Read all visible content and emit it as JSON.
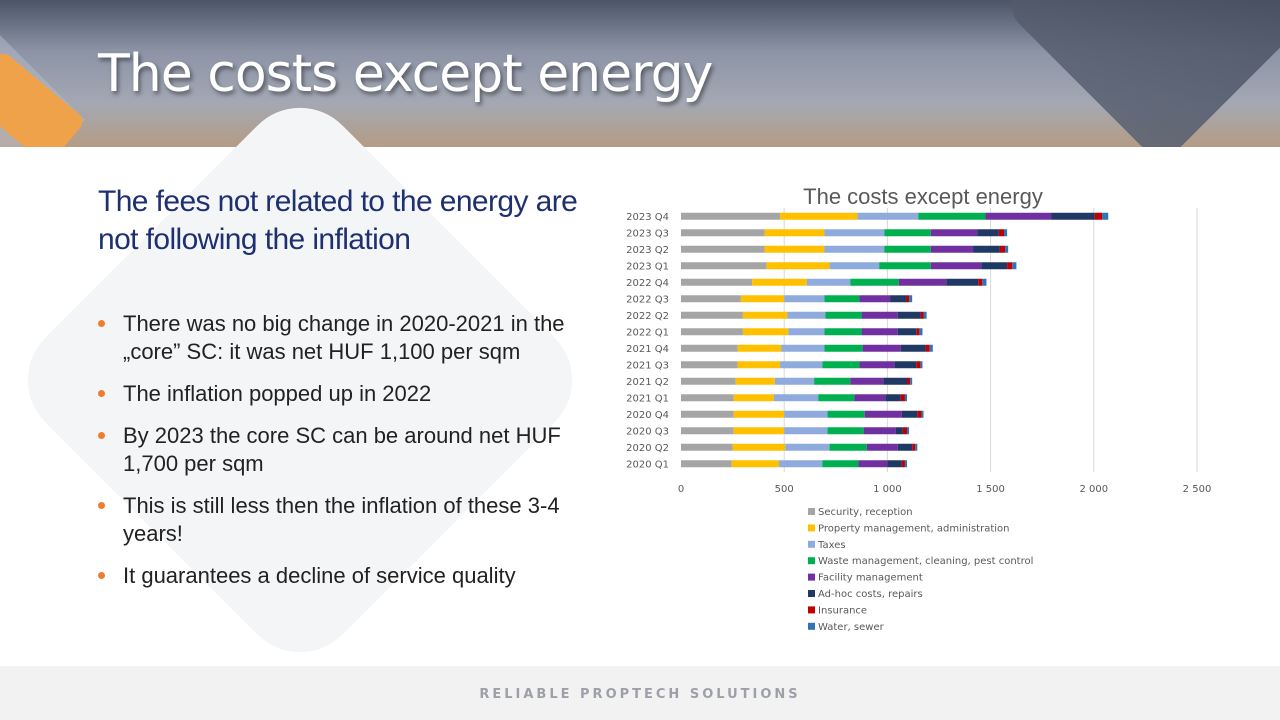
{
  "slide": {
    "title": "The costs except energy",
    "subtitle": "The fees not related to the energy are not following the inflation",
    "bullets": [
      "There was no big change in 2020-2021 in the „core” SC: it was net HUF 1,100 per sqm",
      "The inflation popped up in 2022",
      "By 2023 the core SC can be around net HUF 1,700 per sqm",
      "This is still less then the inflation of these 3-4 years!",
      "It guarantees a decline of service quality"
    ],
    "footer": "RELIABLE PROPTECH SOLUTIONS"
  },
  "colors": {
    "title": "#ffffff",
    "subtitle": "#1f3070",
    "bullet_dot": "#ed7d31",
    "accent_orange": "#f0a24a"
  },
  "chart_data": {
    "type": "bar",
    "orientation": "horizontal",
    "stacked": true,
    "title": "The costs except energy",
    "categories": [
      "2020 Q1",
      "2020 Q2",
      "2020 Q3",
      "2020 Q4",
      "2021 Q1",
      "2021 Q2",
      "2021 Q3",
      "2021 Q4",
      "2022 Q1",
      "2022 Q2",
      "2022 Q3",
      "2022 Q4",
      "2023 Q1",
      "2023 Q2",
      "2023 Q3",
      "2023 Q4"
    ],
    "xlim": [
      0,
      2500
    ],
    "xticks": [
      0,
      500,
      1000,
      1500,
      2000,
      2500
    ],
    "xtick_labels": [
      "0",
      "500",
      "1 000",
      "1 500",
      "2 000",
      "2 500"
    ],
    "grid": true,
    "legend": "bottom",
    "series": [
      {
        "name": "Security, reception",
        "color": "#a5a5a5",
        "values": [
          245,
          250,
          255,
          255,
          255,
          265,
          275,
          275,
          300,
          300,
          290,
          345,
          415,
          405,
          405,
          480
        ]
      },
      {
        "name": "Property management, administration",
        "color": "#ffc000",
        "values": [
          230,
          255,
          245,
          245,
          195,
          190,
          205,
          210,
          220,
          215,
          210,
          265,
          305,
          290,
          290,
          375
        ]
      },
      {
        "name": "Taxes",
        "color": "#8faadc",
        "values": [
          210,
          215,
          210,
          210,
          215,
          190,
          205,
          210,
          175,
          185,
          195,
          210,
          240,
          290,
          290,
          295
        ]
      },
      {
        "name": "Waste management, cleaning, pest control",
        "color": "#00b050",
        "values": [
          175,
          180,
          175,
          180,
          175,
          175,
          180,
          185,
          180,
          175,
          170,
          235,
          250,
          225,
          225,
          325
        ]
      },
      {
        "name": "Facility management",
        "color": "#7030a0",
        "values": [
          140,
          150,
          155,
          180,
          150,
          160,
          170,
          185,
          175,
          175,
          150,
          230,
          245,
          205,
          225,
          320
        ]
      },
      {
        "name": "Ad-hoc costs, repairs",
        "color": "#1f3864",
        "values": [
          70,
          70,
          35,
          75,
          75,
          115,
          105,
          120,
          90,
          110,
          75,
          155,
          125,
          130,
          105,
          210
        ]
      },
      {
        "name": "Insurance",
        "color": "#c00000",
        "values": [
          15,
          15,
          20,
          20,
          20,
          15,
          20,
          20,
          15,
          15,
          15,
          20,
          25,
          25,
          25,
          35
        ]
      },
      {
        "name": "Water, sewer",
        "color": "#2e75b6",
        "values": [
          10,
          10,
          10,
          10,
          10,
          10,
          10,
          15,
          15,
          15,
          15,
          20,
          20,
          15,
          15,
          30
        ]
      }
    ]
  }
}
